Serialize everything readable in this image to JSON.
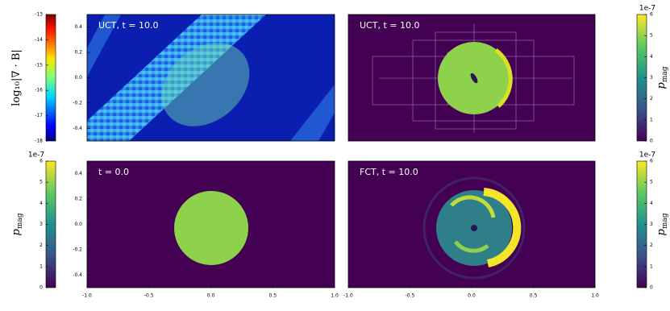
{
  "chart_data": [
    {
      "type": "heatmap",
      "title": "UCT, t = 10.0",
      "ylim": [
        -0.5,
        0.5
      ],
      "yticks": [
        0.4,
        0.2,
        {
          "value": 0.0,
          "label": "0.0"
        },
        -0.2,
        -0.4
      ],
      "colorbar": {
        "colormap": "jet",
        "label": "log₁₀|∇ · B|",
        "lim": [
          -18,
          -13
        ],
        "ticks": [
          -13,
          -14,
          -15,
          -16,
          -17,
          -18
        ]
      }
    },
    {
      "type": "heatmap",
      "title": "UCT, t = 10.0",
      "colorbar": {
        "colormap": "viridis",
        "label": "p",
        "label_sub": "mag",
        "offset_label": "1e-7",
        "lim": [
          0,
          6
        ],
        "ticks": [
          0,
          1,
          2,
          3,
          4,
          5,
          6
        ]
      }
    },
    {
      "type": "heatmap",
      "title": "t = 0.0",
      "xlim": [
        -1,
        1
      ],
      "xticks": [
        {
          "value": -1,
          "label": "-1.0"
        },
        -0.5,
        {
          "value": 0,
          "label": "0.0"
        },
        0.5,
        {
          "value": 1,
          "label": "1.0"
        }
      ],
      "ylim": [
        -0.5,
        0.5
      ],
      "yticks": [
        0.4,
        0.2,
        {
          "value": 0.0,
          "label": "0.0"
        },
        -0.2,
        -0.4
      ],
      "colorbar": {
        "colormap": "viridis",
        "label": "p",
        "label_sub": "mag",
        "offset_label": "1e-7",
        "lim": [
          0,
          6
        ],
        "ticks": [
          0,
          1,
          2,
          3,
          4,
          5,
          6
        ]
      }
    },
    {
      "type": "heatmap",
      "title": "FCT, t = 10.0",
      "xlim": [
        -1,
        1
      ],
      "xticks": [
        {
          "value": -1,
          "label": "-1.0"
        },
        -0.5,
        {
          "value": 0,
          "label": "0.0"
        },
        0.5,
        {
          "value": 1,
          "label": "1.0"
        }
      ],
      "colorbar": {
        "colormap": "viridis",
        "label": "p",
        "label_sub": "mag",
        "offset_label": "1e-7",
        "lim": [
          0,
          6
        ],
        "ticks": [
          0,
          1,
          2,
          3,
          4,
          5,
          6
        ]
      }
    }
  ]
}
